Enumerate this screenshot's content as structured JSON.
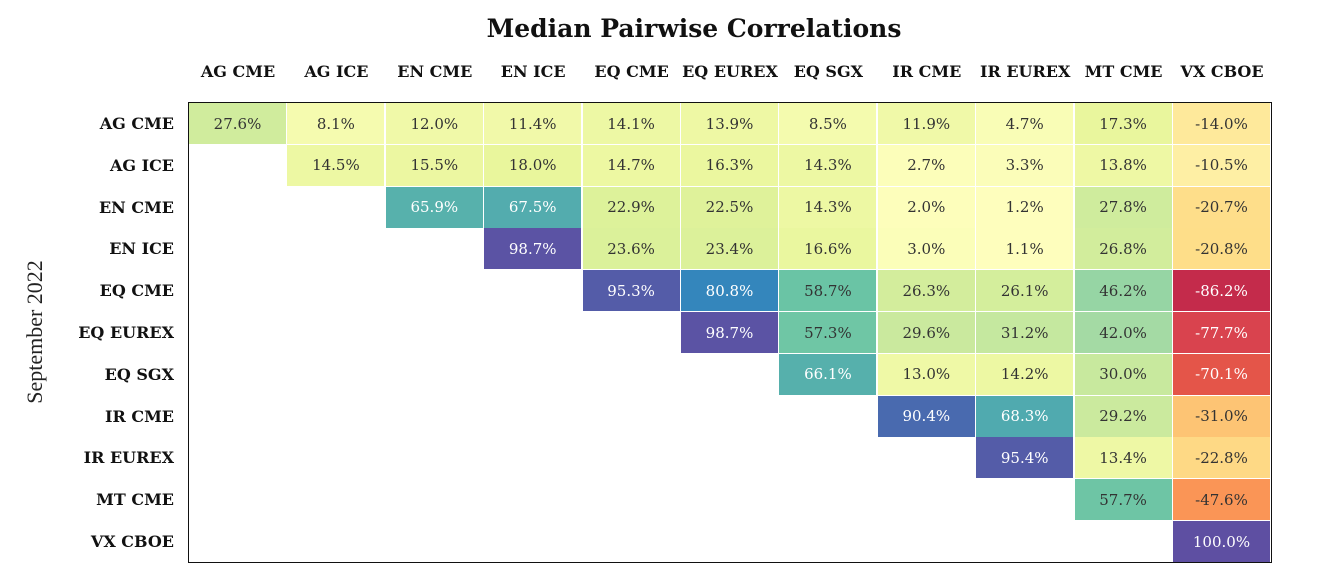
{
  "chart_data": {
    "type": "heatmap",
    "title": "Median Pairwise Correlations",
    "ylabel": "September 2022",
    "x_labels": [
      "AG CME",
      "AG ICE",
      "EN CME",
      "EN ICE",
      "EQ CME",
      "EQ EUREX",
      "EQ SGX",
      "IR CME",
      "IR EUREX",
      "MT CME",
      "VX CBOE"
    ],
    "y_labels": [
      "AG CME",
      "AG ICE",
      "EN CME",
      "EN ICE",
      "EQ CME",
      "EQ EUREX",
      "EQ SGX",
      "IR CME",
      "IR EUREX",
      "MT CME",
      "VX CBOE"
    ],
    "values": [
      [
        27.6,
        8.1,
        12.0,
        11.4,
        14.1,
        13.9,
        8.5,
        11.9,
        4.7,
        17.3,
        -14.0
      ],
      [
        null,
        14.5,
        15.5,
        18.0,
        14.7,
        16.3,
        14.3,
        2.7,
        3.3,
        13.8,
        -10.5
      ],
      [
        null,
        null,
        65.9,
        67.5,
        22.9,
        22.5,
        14.3,
        2.0,
        1.2,
        27.8,
        -20.7
      ],
      [
        null,
        null,
        null,
        98.7,
        23.6,
        23.4,
        16.6,
        3.0,
        1.1,
        26.8,
        -20.8
      ],
      [
        null,
        null,
        null,
        null,
        95.3,
        80.8,
        58.7,
        26.3,
        26.1,
        46.2,
        -86.2
      ],
      [
        null,
        null,
        null,
        null,
        null,
        98.7,
        57.3,
        29.6,
        31.2,
        42.0,
        -77.7
      ],
      [
        null,
        null,
        null,
        null,
        null,
        null,
        66.1,
        13.0,
        14.2,
        30.0,
        -70.1
      ],
      [
        null,
        null,
        null,
        null,
        null,
        null,
        null,
        90.4,
        68.3,
        29.2,
        -31.0
      ],
      [
        null,
        null,
        null,
        null,
        null,
        null,
        null,
        null,
        95.4,
        13.4,
        -22.8
      ],
      [
        null,
        null,
        null,
        null,
        null,
        null,
        null,
        null,
        null,
        57.7,
        -47.6
      ],
      [
        null,
        null,
        null,
        null,
        null,
        null,
        null,
        null,
        null,
        null,
        100.0
      ]
    ],
    "value_format": "percent_1dp",
    "colormap": "spectral",
    "vmin": -100,
    "vmax": 100,
    "grid": false,
    "legend": "none"
  }
}
